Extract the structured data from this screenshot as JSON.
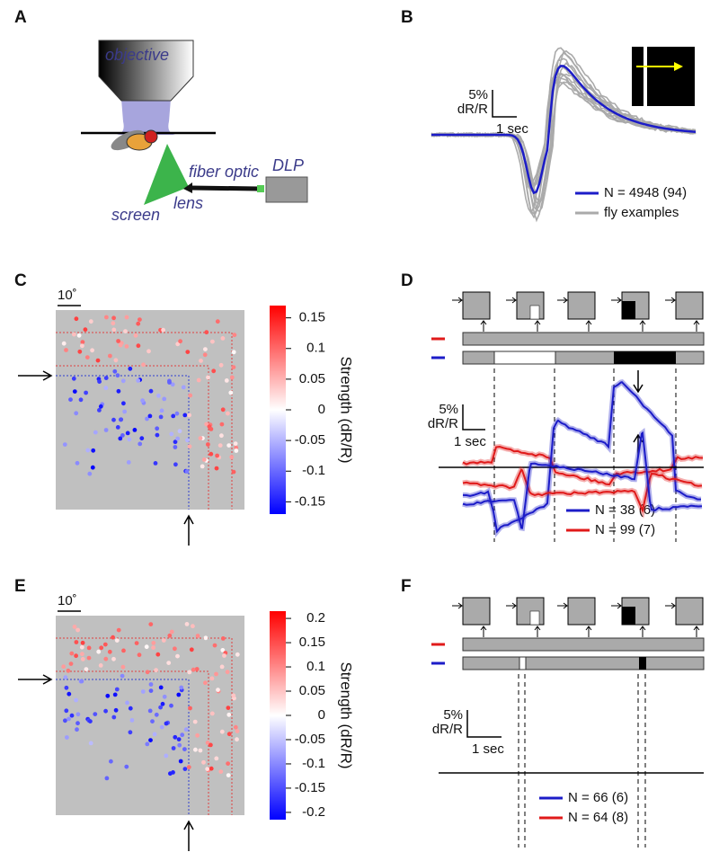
{
  "panel_a": {
    "label": "A",
    "objective": "objective",
    "screen": "screen",
    "lens": "lens",
    "fiber_optic": "fiber optic",
    "dlp": "DLP"
  },
  "panel_b": {
    "label": "B",
    "scale_y": "5%",
    "scale_unit": "dR/R",
    "scale_x": "1 sec",
    "legend": [
      {
        "name": "N = 4948 (94)",
        "color": "#1c1cc8"
      },
      {
        "name": "fly examples",
        "color": "#aaaaaa"
      }
    ]
  },
  "panel_c": {
    "label": "C",
    "scale": "10˚",
    "colorbar": {
      "title": "Strength (dR/R)",
      "lim": [
        -0.17,
        0.17
      ],
      "ticks": [
        0.15,
        0.1,
        0.05,
        0,
        -0.05,
        -0.1,
        -0.15
      ]
    }
  },
  "panel_d": {
    "label": "D",
    "scale_y": "5%",
    "scale_unit": "dR/R",
    "scale_x": "1 sec",
    "legend": [
      {
        "name": "N = 38 (6)",
        "color": "#1c1cc8"
      },
      {
        "name": "N = 99 (7)",
        "color": "#e01a1a"
      }
    ]
  },
  "panel_e": {
    "label": "E",
    "scale": "10˚",
    "colorbar": {
      "title": "Strength (dR/R)",
      "lim": [
        -0.215,
        0.215
      ],
      "ticks": [
        0.2,
        0.15,
        0.1,
        0.05,
        0,
        -0.05,
        -0.1,
        -0.15,
        -0.2
      ]
    }
  },
  "panel_f": {
    "label": "F",
    "scale_y": "5%",
    "scale_unit": "dR/R",
    "scale_x": "1 sec",
    "legend": [
      {
        "name": "N = 66 (6)",
        "color": "#1c1cc8"
      },
      {
        "name": "N = 64 (8)",
        "color": "#e01a1a"
      }
    ]
  }
}
